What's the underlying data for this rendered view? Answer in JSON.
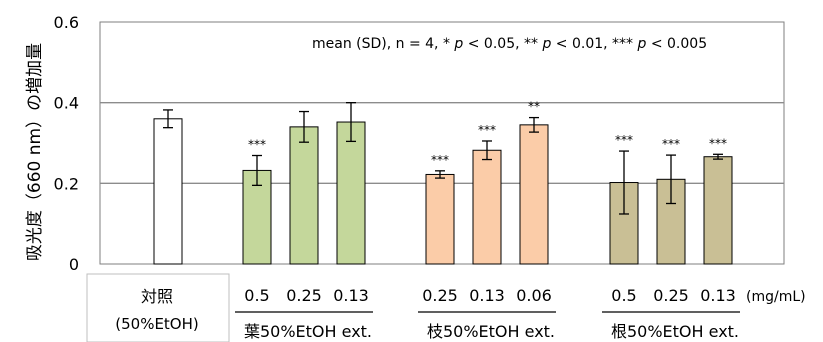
{
  "chart_data": {
    "type": "bar",
    "ylabel": "吸光度（660 nm）の増加量",
    "ylim": [
      0,
      0.6
    ],
    "yticks": [
      "0",
      "0.2",
      "0.4",
      "0.6"
    ],
    "gridlines": [
      0.2,
      0.4
    ],
    "annotation": {
      "prefix": "mean (SD), n = 4, * ",
      "p": "p",
      "t1": " < 0.05, ** ",
      "t2": " < 0.01, *** ",
      "t3": " < 0.005"
    },
    "unit_label": "(mg/mL)",
    "control": {
      "line1": "対照",
      "line2": "(50%EtOH)"
    },
    "groups": [
      {
        "name": "葉50%EtOH ext."
      },
      {
        "name": "枝50%EtOH ext."
      },
      {
        "name": "根50%EtOH ext."
      }
    ],
    "bars": [
      {
        "group": -1,
        "label": "",
        "value": 0.36,
        "err": 0.022,
        "sig": "",
        "color": "#ffffff"
      },
      {
        "group": 0,
        "label": "0.5",
        "value": 0.232,
        "err": 0.037,
        "sig": "***",
        "color": "#c4d79b"
      },
      {
        "group": 0,
        "label": "0.25",
        "value": 0.34,
        "err": 0.038,
        "sig": "",
        "color": "#c4d79b"
      },
      {
        "group": 0,
        "label": "0.13",
        "value": 0.352,
        "err": 0.048,
        "sig": "",
        "color": "#c4d79b"
      },
      {
        "group": 1,
        "label": "0.25",
        "value": 0.222,
        "err": 0.009,
        "sig": "***",
        "color": "#fbcca8"
      },
      {
        "group": 1,
        "label": "0.13",
        "value": 0.282,
        "err": 0.023,
        "sig": "***",
        "color": "#fbcca8"
      },
      {
        "group": 1,
        "label": "0.06",
        "value": 0.345,
        "err": 0.018,
        "sig": "**",
        "color": "#fbcca8"
      },
      {
        "group": 2,
        "label": "0.5",
        "value": 0.202,
        "err": 0.078,
        "sig": "***",
        "color": "#c9bf95"
      },
      {
        "group": 2,
        "label": "0.25",
        "value": 0.21,
        "err": 0.06,
        "sig": "***",
        "color": "#c9bf95"
      },
      {
        "group": 2,
        "label": "0.13",
        "value": 0.266,
        "err": 0.006,
        "sig": "***",
        "color": "#c9bf95"
      }
    ]
  }
}
